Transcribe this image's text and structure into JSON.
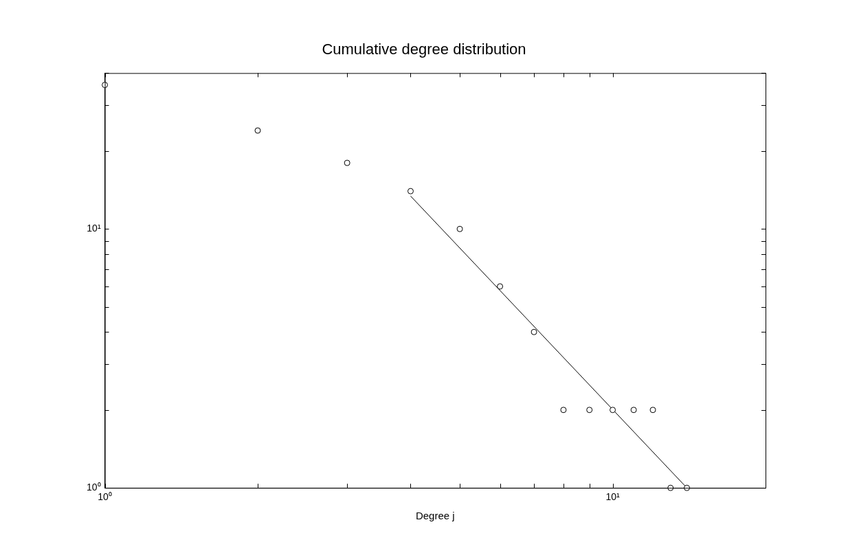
{
  "chart_data": {
    "type": "scatter",
    "title": "Cumulative degree distribution",
    "xlabel": "Degree j",
    "log": "xy",
    "grid": false,
    "legend": false,
    "marker": "circle",
    "xlim": [
      1,
      20
    ],
    "ylim": [
      1,
      40
    ],
    "xticks": [
      {
        "value": 1,
        "label": "10⁰"
      },
      {
        "value": 2,
        "label": null
      },
      {
        "value": 3,
        "label": null
      },
      {
        "value": 4,
        "label": null
      },
      {
        "value": 5,
        "label": null
      },
      {
        "value": 6,
        "label": null
      },
      {
        "value": 7,
        "label": null
      },
      {
        "value": 8,
        "label": null
      },
      {
        "value": 9,
        "label": null
      },
      {
        "value": 10,
        "label": "10¹"
      },
      {
        "value": 20,
        "label": null
      }
    ],
    "yticks": [
      {
        "value": 1,
        "label": "10⁰"
      },
      {
        "value": 2,
        "label": null
      },
      {
        "value": 3,
        "label": null
      },
      {
        "value": 4,
        "label": null
      },
      {
        "value": 5,
        "label": null
      },
      {
        "value": 6,
        "label": null
      },
      {
        "value": 7,
        "label": null
      },
      {
        "value": 8,
        "label": null
      },
      {
        "value": 9,
        "label": null
      },
      {
        "value": 10,
        "label": "10¹"
      },
      {
        "value": 20,
        "label": null
      },
      {
        "value": 30,
        "label": null
      },
      {
        "value": 40,
        "label": null
      }
    ],
    "series": [
      {
        "color": "#000000",
        "x": [
          1,
          2,
          3,
          4,
          5,
          6,
          7,
          8,
          9,
          10,
          11,
          12,
          13,
          14
        ],
        "values": [
          36,
          24,
          18,
          14,
          10,
          6,
          4,
          2,
          2,
          2,
          2,
          2,
          1,
          1
        ]
      },
      {
        "type": "line",
        "color": "#000000",
        "marker": "none",
        "x": [
          4,
          14
        ],
        "values": [
          13.4,
          1
        ]
      }
    ]
  }
}
